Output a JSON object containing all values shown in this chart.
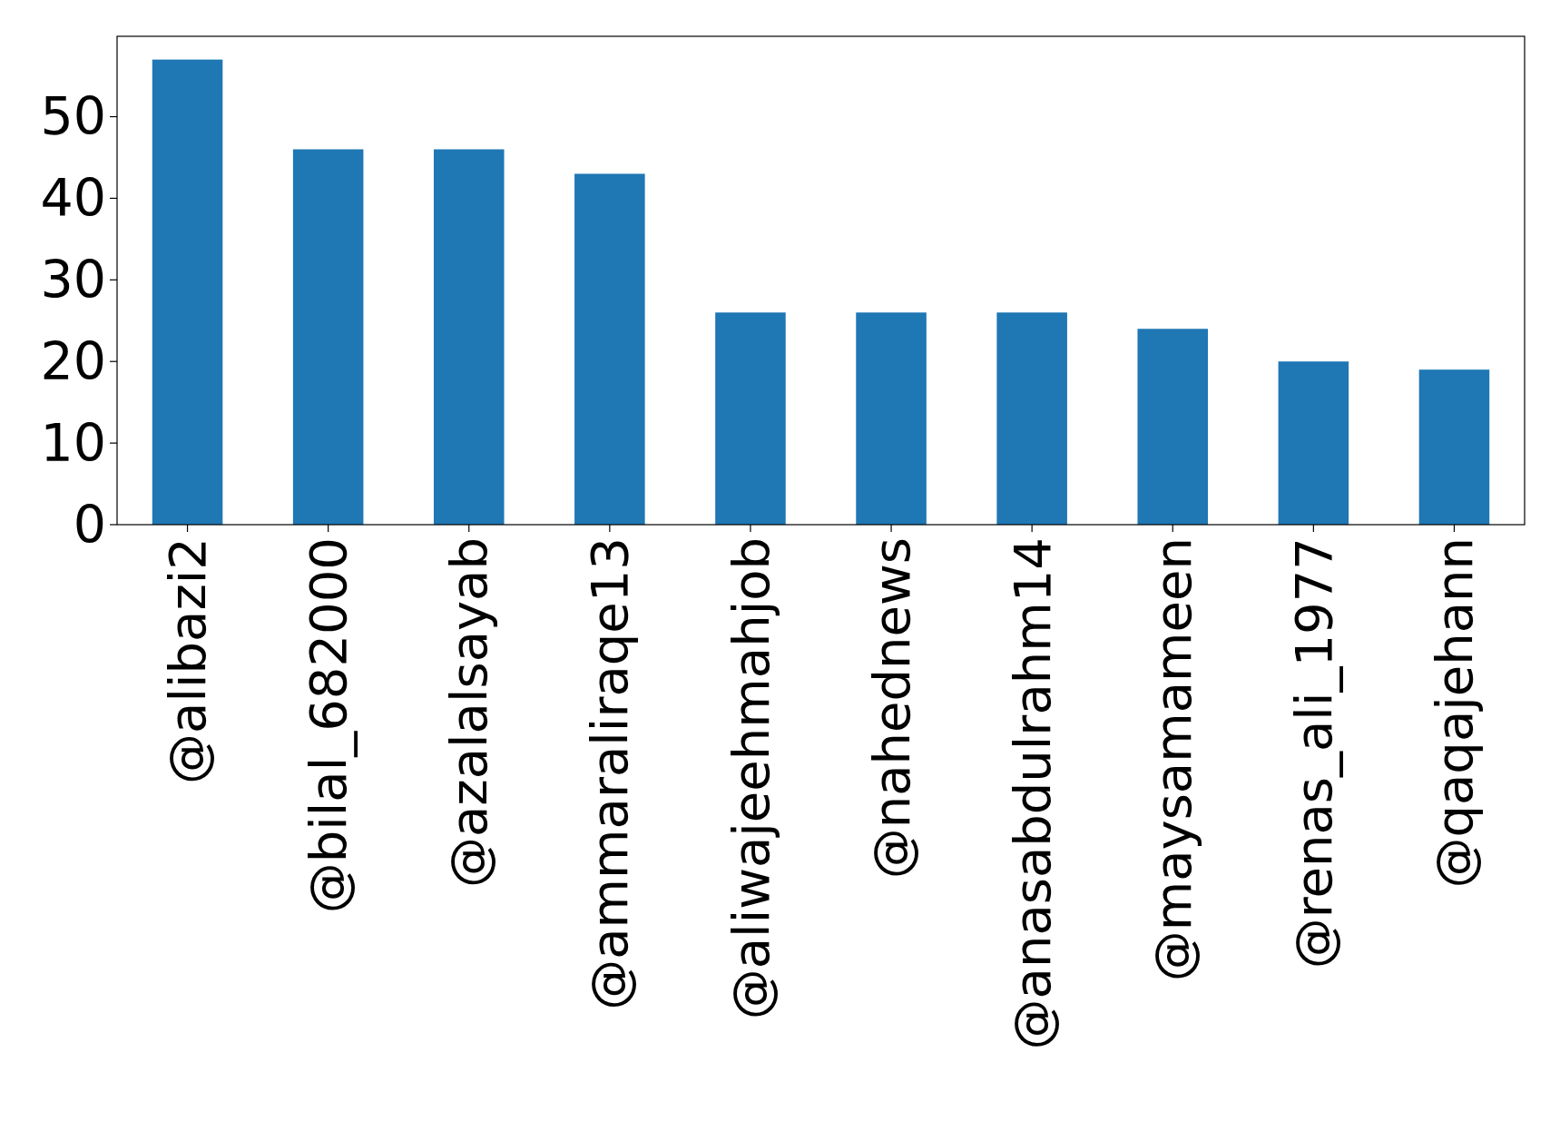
{
  "chart_data": {
    "type": "bar",
    "categories": [
      "@alibazi2",
      "@bilal_682000",
      "@azalalsayab",
      "@ammaraliraqe13",
      "@aliwajeehmahjob",
      "@nahednews",
      "@anasabdulrahm14",
      "@maysamameen",
      "@renas_ali_1977",
      "@qaqajehann"
    ],
    "values": [
      57,
      46,
      46,
      43,
      26,
      26,
      26,
      24,
      20,
      19
    ],
    "color": "#1f77b4",
    "ylim": [
      0,
      59.85
    ],
    "yticks": [
      0,
      10,
      20,
      30,
      40,
      50
    ]
  }
}
